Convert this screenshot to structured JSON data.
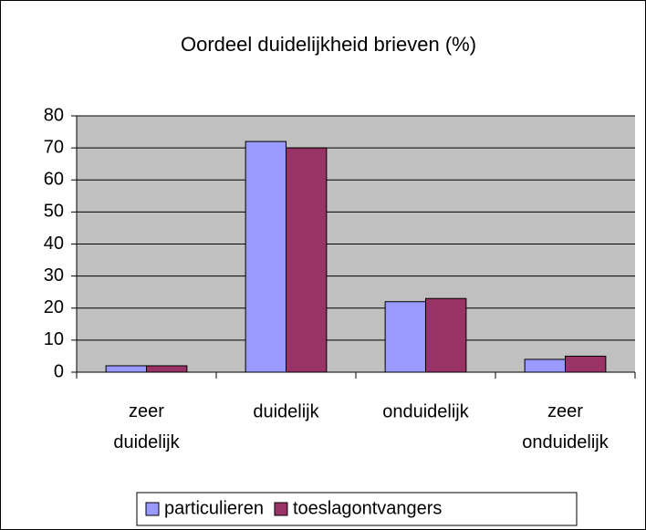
{
  "chart_data": {
    "type": "bar",
    "title": "Oordeel duidelijkheid brieven (%)",
    "categories": [
      "zeer duidelijk",
      "duidelijk",
      "onduidelijk",
      "zeer onduidelijk"
    ],
    "series": [
      {
        "name": "particulieren",
        "color": "#9999ff",
        "values": [
          2,
          72,
          22,
          4
        ]
      },
      {
        "name": "toeslagontvangers",
        "color": "#993366",
        "values": [
          2,
          70,
          23,
          5
        ]
      }
    ],
    "ylim": [
      0,
      80
    ],
    "yticks": [
      0,
      10,
      20,
      30,
      40,
      50,
      60,
      70,
      80
    ],
    "grid": true,
    "legend": "bottom"
  }
}
